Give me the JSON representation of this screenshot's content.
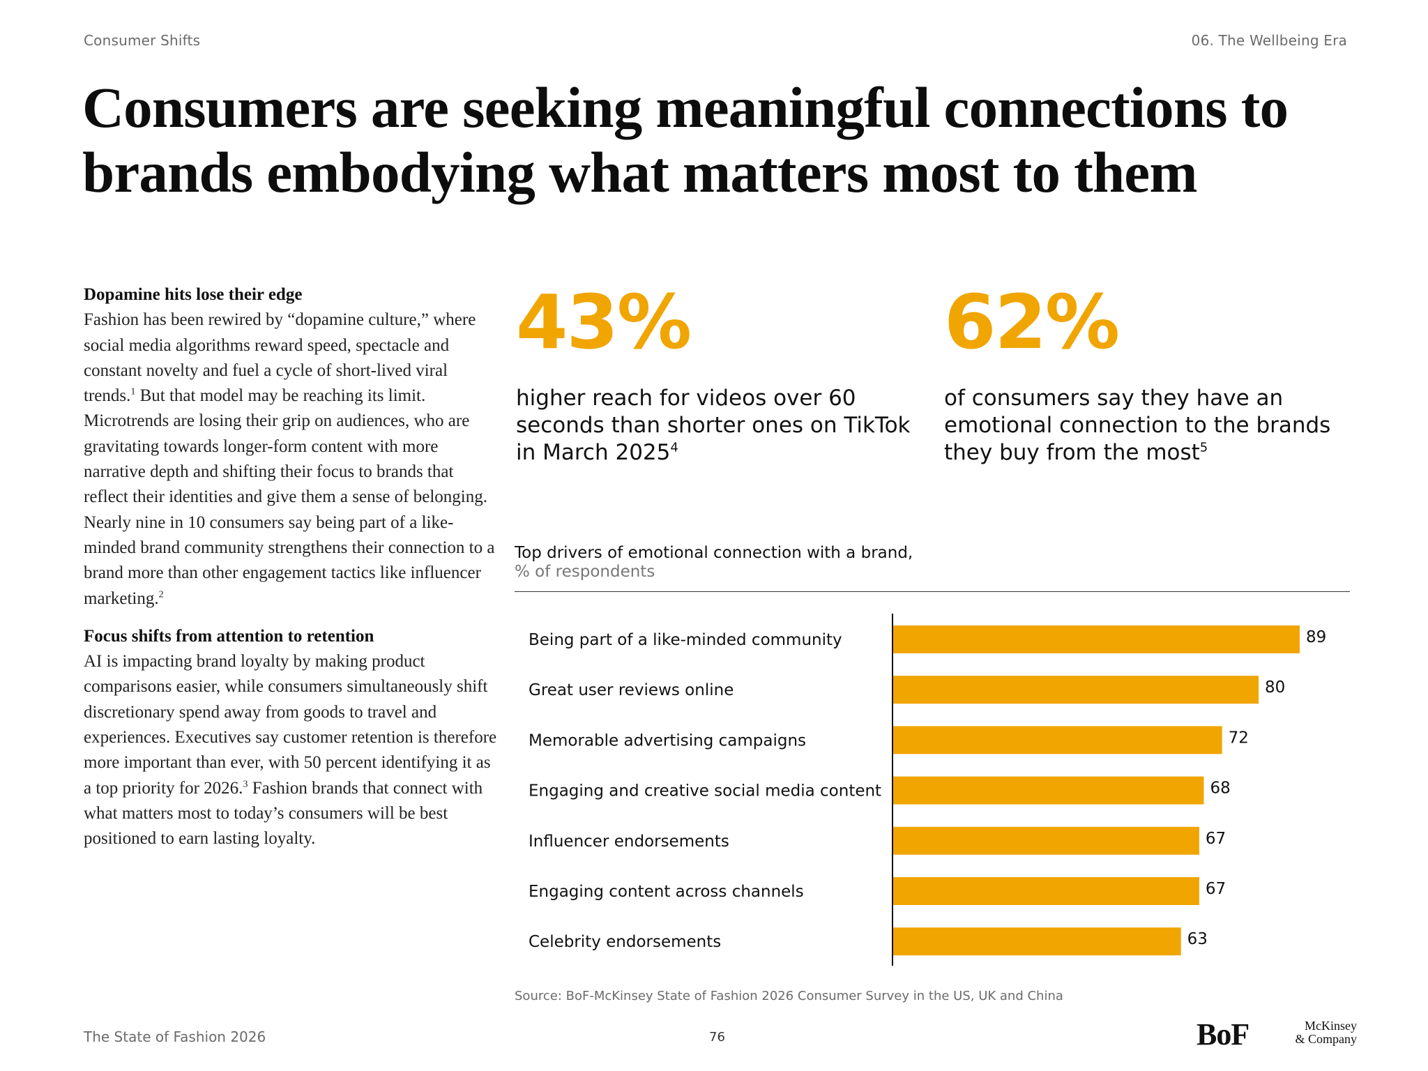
{
  "header": {
    "section": "Consumer Shifts",
    "chapter": "06. The Wellbeing Era"
  },
  "title": "Consumers are seeking meaningful connections to brands embodying what matters most to them",
  "left_column": {
    "section1": {
      "heading": "Dopamine hits lose their edge",
      "text_a": "Fashion has been rewired by “dopamine culture,” where social media algorithms reward speed, spectacle and constant novelty and fuel a cycle of short-lived viral trends.",
      "fn_a": "1",
      "text_b": " But that model may be reaching its limit. Microtrends are losing their grip on audiences, who are gravitating towards longer-form content with more narrative depth and shifting their focus to brands that reflect their identities and give them a sense of belonging. Nearly nine in 10 consumers say being part of a like-minded brand community strengthens their connection to a brand more than other engagement tactics like influencer marketing.",
      "fn_b": "2"
    },
    "section2": {
      "heading": "Focus shifts from attention to retention",
      "text_a": "AI is impacting brand loyalty by making product comparisons easier, while consumers simultaneously shift discretionary spend away from goods to travel and experiences. Executives say customer retention is therefore more important than ever, with 50 percent identifying it as a top priority for 2026.",
      "fn_a": "3",
      "text_b": " Fashion brands that connect with what matters most to today’s consumers will be best positioned to earn lasting loyalty."
    }
  },
  "stats": [
    {
      "number": "43%",
      "description": "higher reach for videos over 60 seconds than shorter ones on TikTok in March 2025",
      "footnote": "4"
    },
    {
      "number": "62%",
      "description": "of consumers say they have an emotional connection to the brands they buy from the most",
      "footnote": "5"
    }
  ],
  "chart_data": {
    "type": "bar",
    "orientation": "horizontal",
    "title": "Top drivers of emotional connection with a brand,",
    "subtitle": "% of respondents",
    "categories": [
      "Being part of a like-minded community",
      "Great user reviews online",
      "Memorable advertising campaigns",
      "Engaging and creative social media content",
      "Influencer endorsements",
      "Engaging content across channels",
      "Celebrity endorsements"
    ],
    "values": [
      89,
      80,
      72,
      68,
      67,
      67,
      63
    ],
    "xlim": [
      0,
      100
    ],
    "bar_color": "#f0a500",
    "grid": false
  },
  "source": "Source: BoF-McKinsey State of Fashion 2026 Consumer Survey in the US, UK and China",
  "footer": {
    "publication": "The State of Fashion 2026",
    "page_number": "76",
    "logo_bof": "BoF",
    "logo_mckinsey_line1": "McKinsey",
    "logo_mckinsey_line2": "& Company"
  },
  "colors": {
    "accent": "#f0a500",
    "text": "#111111",
    "muted": "#6b6b6b"
  }
}
